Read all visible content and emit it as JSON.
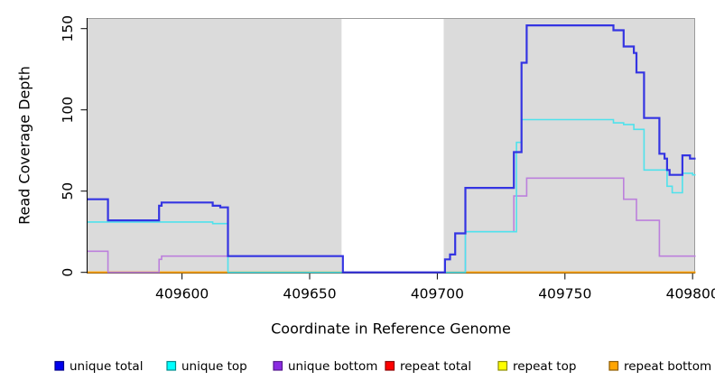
{
  "figure": {
    "xlabel": "Coordinate in Reference Genome",
    "ylabel": "Read Coverage Depth"
  },
  "chart_data": {
    "type": "line",
    "subtype": "step",
    "title": "",
    "xlabel": "Coordinate in Reference Genome",
    "ylabel": "Read Coverage Depth",
    "xlim": [
      409563,
      409801
    ],
    "ylim": [
      0,
      156
    ],
    "x_ticks": [
      "409600",
      "409650",
      "409700",
      "409750",
      "409800"
    ],
    "x_tick_values": [
      409600,
      409650,
      409700,
      409750,
      409800
    ],
    "y_ticks": [
      "0",
      "50",
      "100",
      "150"
    ],
    "y_tick_values": [
      0,
      50,
      100,
      150
    ],
    "grid": false,
    "panel_background": "#DBDBDB",
    "panel_border_color": "#9A9A9A",
    "gap_region": {
      "x_start": 409662.5,
      "x_end": 409702.5,
      "color": "#FFFFFF"
    },
    "legend_position": "bottom",
    "series": [
      {
        "name": "unique total",
        "color": "#3434E2",
        "legend_color": "#0000EE",
        "legend_border": "#00008B",
        "line_width": 2.2,
        "z": 6,
        "steps": [
          [
            409563,
            45
          ],
          [
            409571,
            32
          ],
          [
            409591,
            41
          ],
          [
            409592,
            43
          ],
          [
            409612,
            41
          ],
          [
            409615,
            40
          ],
          [
            409618,
            10
          ],
          [
            409663,
            0
          ],
          [
            409703,
            8
          ],
          [
            409705,
            11
          ],
          [
            409707,
            24
          ],
          [
            409711,
            52
          ],
          [
            409730,
            74
          ],
          [
            409733,
            129
          ],
          [
            409735,
            152
          ],
          [
            409769,
            149
          ],
          [
            409773,
            139
          ],
          [
            409777,
            135
          ],
          [
            409778,
            123
          ],
          [
            409781,
            95
          ],
          [
            409787,
            73
          ],
          [
            409789,
            70
          ],
          [
            409790,
            63
          ],
          [
            409791,
            60
          ],
          [
            409796,
            72
          ],
          [
            409799,
            70
          ]
        ]
      },
      {
        "name": "unique top",
        "color": "#4FE2EC",
        "legend_color": "#00FFFF",
        "legend_border": "#008B8B",
        "line_width": 1.6,
        "z": 5,
        "steps": [
          [
            409563,
            31
          ],
          [
            409612,
            30
          ],
          [
            409618,
            0
          ],
          [
            409711,
            25
          ],
          [
            409731,
            80
          ],
          [
            409733,
            94
          ],
          [
            409769,
            92
          ],
          [
            409773,
            91
          ],
          [
            409777,
            88
          ],
          [
            409781,
            63
          ],
          [
            409790,
            53
          ],
          [
            409792,
            49
          ],
          [
            409796,
            61
          ],
          [
            409800,
            60
          ]
        ]
      },
      {
        "name": "unique bottom",
        "color": "#BC80DC",
        "legend_color": "#8B2BE2",
        "legend_border": "#551A8B",
        "line_width": 1.6,
        "z": 4,
        "steps": [
          [
            409563,
            13
          ],
          [
            409571,
            0
          ],
          [
            409591,
            8
          ],
          [
            409592,
            10
          ],
          [
            409663,
            0
          ],
          [
            409711,
            25
          ],
          [
            409730,
            47
          ],
          [
            409735,
            58
          ],
          [
            409773,
            45
          ],
          [
            409778,
            32
          ],
          [
            409787,
            10
          ]
        ]
      },
      {
        "name": "repeat total",
        "color": "#EE0000",
        "legend_color": "#FF0000",
        "legend_border": "#8B0000",
        "line_width": 1.6,
        "z": 1,
        "steps": [
          [
            409563,
            0
          ]
        ]
      },
      {
        "name": "repeat top",
        "color": "#FFFF00",
        "legend_color": "#FFFF00",
        "legend_border": "#8B8B00",
        "line_width": 1.6,
        "z": 2,
        "steps": [
          [
            409563,
            0
          ]
        ]
      },
      {
        "name": "repeat bottom",
        "color": "#FFA500",
        "legend_color": "#FFA500",
        "legend_border": "#8B5A00",
        "line_width": 1.8,
        "z": 3,
        "steps": [
          [
            409563,
            0
          ]
        ]
      }
    ]
  }
}
